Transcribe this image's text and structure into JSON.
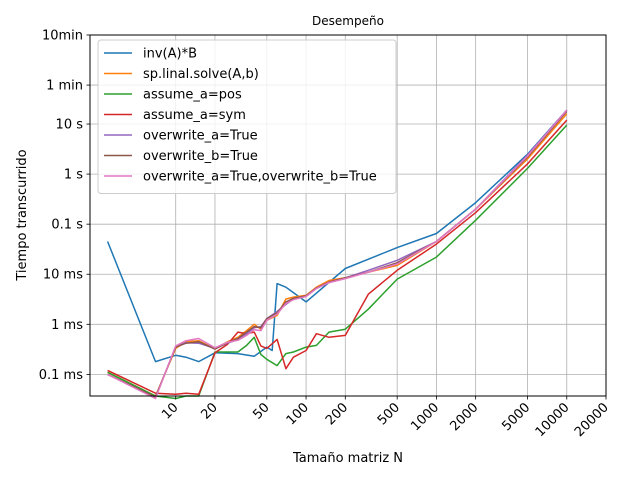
{
  "chart_data": {
    "type": "line",
    "title": "Desempeño",
    "xlabel": "Tamaño matriz N",
    "ylabel": "Tiempo transcurrido",
    "xscale": "log",
    "yscale": "log",
    "xlim": [
      2.2,
      20000
    ],
    "ylim": [
      3.7e-05,
      600
    ],
    "grid": true,
    "legend_position": "top-left",
    "x_ticks": [
      {
        "value": 10,
        "label": "10"
      },
      {
        "value": 20,
        "label": "20"
      },
      {
        "value": 50,
        "label": "50"
      },
      {
        "value": 100,
        "label": "100"
      },
      {
        "value": 200,
        "label": "200"
      },
      {
        "value": 500,
        "label": "500"
      },
      {
        "value": 1000,
        "label": "1000"
      },
      {
        "value": 2000,
        "label": "2000"
      },
      {
        "value": 5000,
        "label": "5000"
      },
      {
        "value": 10000,
        "label": "10000"
      },
      {
        "value": 20000,
        "label": "20000"
      }
    ],
    "y_ticks": [
      {
        "value": 0.0001,
        "label": "0.1 ms"
      },
      {
        "value": 0.001,
        "label": "1 ms"
      },
      {
        "value": 0.01,
        "label": "10 ms"
      },
      {
        "value": 0.1,
        "label": "0.1 s"
      },
      {
        "value": 1,
        "label": "1 s"
      },
      {
        "value": 10,
        "label": "10 s"
      },
      {
        "value": 60,
        "label": "1 min"
      },
      {
        "value": 600,
        "label": "10min"
      }
    ],
    "series": [
      {
        "name": "inv(A)*B",
        "color": "#1f77b4",
        "x": [
          3,
          7,
          10,
          12,
          15,
          20,
          30,
          40,
          50,
          55,
          60,
          70,
          80,
          100,
          200,
          500,
          1000,
          2000,
          5000,
          10000
        ],
        "y": [
          0.045,
          0.00018,
          0.00024,
          0.00022,
          0.00018,
          0.00027,
          0.00026,
          0.00023,
          0.00035,
          0.0003,
          0.0065,
          0.0055,
          0.0043,
          0.0028,
          0.013,
          0.034,
          0.065,
          0.27,
          2.5,
          19
        ]
      },
      {
        "name": "sp.linal.solve(A,b)",
        "color": "#ff7f0e",
        "x": [
          3,
          7,
          10,
          12,
          15,
          20,
          25,
          30,
          35,
          40,
          45,
          50,
          60,
          70,
          80,
          100,
          120,
          150,
          200,
          300,
          500,
          1000,
          2000,
          5000,
          10000
        ],
        "y": [
          0.00011,
          3.7e-05,
          0.00033,
          0.00045,
          0.00047,
          0.00032,
          0.00045,
          0.00055,
          0.00075,
          0.001,
          0.0008,
          0.0012,
          0.0015,
          0.0032,
          0.0035,
          0.0038,
          0.0055,
          0.0075,
          0.0085,
          0.011,
          0.015,
          0.045,
          0.2,
          2.0,
          16
        ]
      },
      {
        "name": "assume_a=pos",
        "color": "#2ca02c",
        "x": [
          3,
          7,
          10,
          12,
          15,
          20,
          25,
          30,
          35,
          40,
          45,
          50,
          60,
          70,
          80,
          100,
          120,
          150,
          200,
          300,
          500,
          1000,
          2000,
          5000,
          10000
        ],
        "y": [
          0.00011,
          3.7e-05,
          3.3e-05,
          3.7e-05,
          3.7e-05,
          0.00028,
          0.00028,
          0.00028,
          0.00038,
          0.00055,
          0.00025,
          0.0002,
          0.00015,
          0.00026,
          0.00028,
          0.00035,
          0.00038,
          0.0007,
          0.0008,
          0.002,
          0.008,
          0.022,
          0.12,
          1.3,
          9.5
        ]
      },
      {
        "name": "assume_a=sym",
        "color": "#d62728",
        "x": [
          3,
          7,
          10,
          12,
          15,
          20,
          25,
          30,
          35,
          40,
          45,
          50,
          60,
          70,
          80,
          100,
          120,
          150,
          200,
          300,
          500,
          1000,
          2000,
          5000,
          10000
        ],
        "y": [
          0.00012,
          4.2e-05,
          4e-05,
          4.2e-05,
          4e-05,
          0.00027,
          0.0004,
          0.0007,
          0.00065,
          0.0007,
          0.00037,
          0.00033,
          0.0005,
          0.00013,
          0.00022,
          0.0003,
          0.00065,
          0.00055,
          0.0006,
          0.004,
          0.012,
          0.04,
          0.17,
          1.6,
          12
        ]
      },
      {
        "name": "overwrite_a=True",
        "color": "#9467bd",
        "x": [
          3,
          7,
          10,
          12,
          15,
          20,
          25,
          30,
          35,
          40,
          45,
          50,
          60,
          70,
          80,
          100,
          120,
          150,
          200,
          300,
          500,
          1000,
          2000,
          5000,
          10000
        ],
        "y": [
          0.0001,
          3.5e-05,
          0.00036,
          0.00043,
          0.00042,
          0.00033,
          0.00042,
          0.0005,
          0.00065,
          0.00085,
          0.0009,
          0.0013,
          0.0018,
          0.0025,
          0.0032,
          0.0037,
          0.0052,
          0.0068,
          0.0085,
          0.012,
          0.019,
          0.045,
          0.2,
          2.4,
          19
        ]
      },
      {
        "name": "overwrite_b=True",
        "color": "#8c564b",
        "x": [
          3,
          7,
          10,
          12,
          15,
          20,
          25,
          30,
          35,
          40,
          45,
          50,
          60,
          70,
          80,
          100,
          120,
          150,
          200,
          300,
          500,
          1000,
          2000,
          5000,
          10000
        ],
        "y": [
          0.0001,
          3.5e-05,
          0.00035,
          0.00042,
          0.00045,
          0.00032,
          0.00043,
          0.00052,
          0.0007,
          0.0009,
          0.00085,
          0.0013,
          0.0017,
          0.0028,
          0.0033,
          0.0037,
          0.0053,
          0.007,
          0.0085,
          0.011,
          0.017,
          0.045,
          0.2,
          2.2,
          18
        ]
      },
      {
        "name": "overwrite_a=True,overwrite_b=True",
        "color": "#e377c2",
        "x": [
          3,
          7,
          10,
          12,
          15,
          20,
          25,
          30,
          35,
          40,
          45,
          50,
          60,
          70,
          80,
          100,
          120,
          150,
          200,
          300,
          500,
          1000,
          2000,
          5000,
          10000
        ],
        "y": [
          0.0001,
          3.3e-05,
          0.00037,
          0.00047,
          0.00052,
          0.00034,
          0.00044,
          0.00048,
          0.0006,
          0.00078,
          0.00075,
          0.0012,
          0.0016,
          0.0026,
          0.0031,
          0.0036,
          0.0052,
          0.0068,
          0.0082,
          0.011,
          0.016,
          0.045,
          0.2,
          2.3,
          19
        ]
      }
    ]
  }
}
